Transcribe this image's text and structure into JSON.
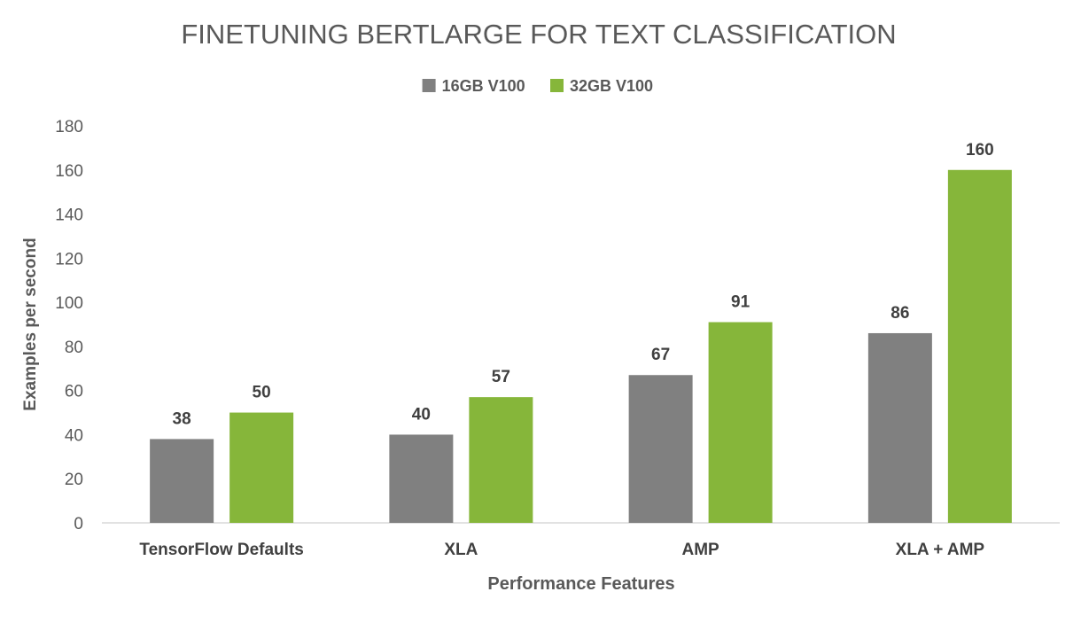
{
  "chart_data": {
    "type": "bar",
    "title": "FINETUNING BERTLARGE FOR TEXT CLASSIFICATION",
    "xlabel": "Performance Features",
    "ylabel": "Examples per second",
    "categories": [
      "TensorFlow Defaults",
      "XLA",
      "AMP",
      "XLA + AMP"
    ],
    "series": [
      {
        "name": "16GB V100",
        "color": "#808080",
        "values": [
          38,
          40,
          67,
          86
        ]
      },
      {
        "name": "32GB V100",
        "color": "#86b63a",
        "values": [
          50,
          57,
          91,
          160
        ]
      }
    ],
    "ylim": [
      0,
      180
    ],
    "yticks": [
      0,
      20,
      40,
      60,
      80,
      100,
      120,
      140,
      160,
      180
    ],
    "grid": false,
    "legend_position": "top-center",
    "data_labels": true
  }
}
